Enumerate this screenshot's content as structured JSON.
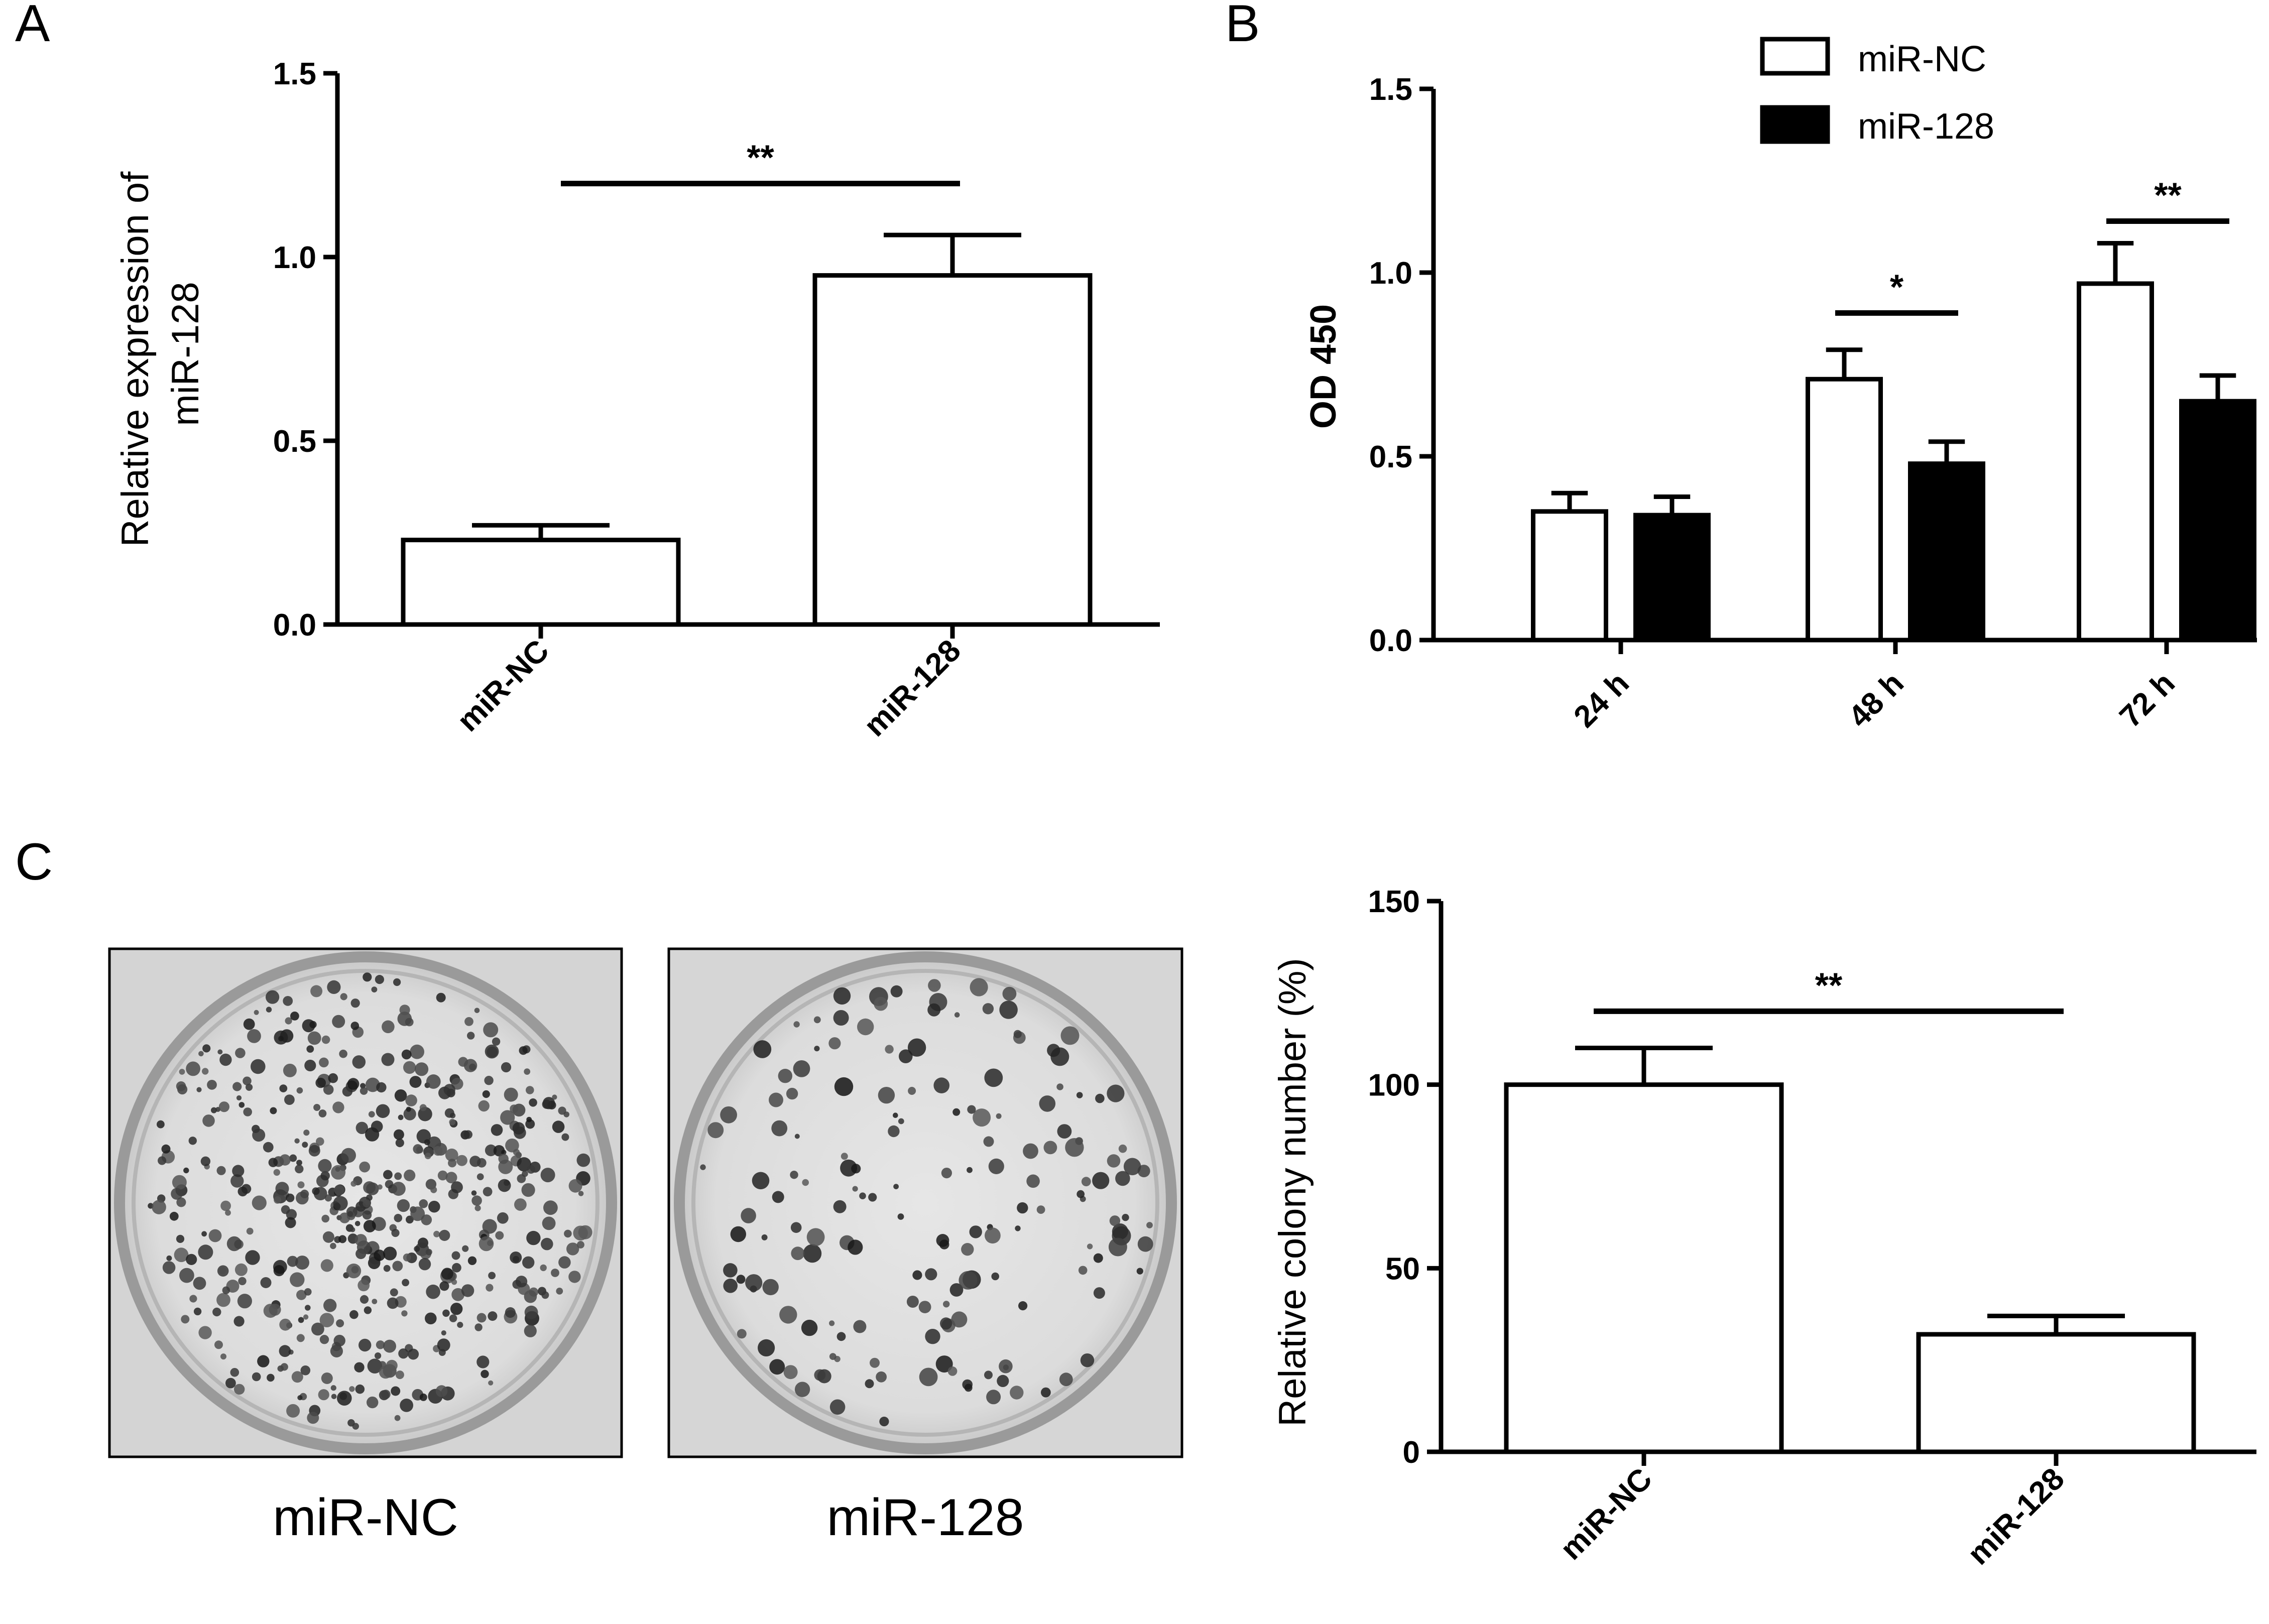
{
  "panels": {
    "a": "A",
    "b": "B",
    "c": "C"
  },
  "plate_captions": [
    "miR-NC",
    "miR-128"
  ],
  "chart_data": [
    {
      "id": "A",
      "type": "bar",
      "categories": [
        "miR-NC",
        "miR-128"
      ],
      "values": [
        0.23,
        0.95
      ],
      "errors": [
        0.04,
        0.11
      ],
      "ylabel": [
        "Relative expression of",
        "miR-128"
      ],
      "ylim": [
        0,
        1.5
      ],
      "yticks": [
        "0.0",
        "0.5",
        "1.0",
        "1.5"
      ],
      "ytick_values": [
        0,
        0.5,
        1.0,
        1.5
      ],
      "significance": [
        {
          "from": 0,
          "to": 1,
          "label": "**",
          "y": 1.2
        }
      ],
      "grid": false
    },
    {
      "id": "B",
      "type": "bar",
      "categories": [
        "24 h",
        "48 h",
        "72 h"
      ],
      "series": [
        {
          "name": "miR-NC",
          "values": [
            0.35,
            0.71,
            0.97
          ],
          "errors": [
            0.05,
            0.08,
            0.11
          ],
          "fill": "#ffffff"
        },
        {
          "name": "miR-128",
          "values": [
            0.34,
            0.48,
            0.65
          ],
          "errors": [
            0.05,
            0.06,
            0.07
          ],
          "fill": "#000000"
        }
      ],
      "ylabel": "OD 450",
      "ylim": [
        0,
        1.5
      ],
      "yticks": [
        "0.0",
        "0.5",
        "1.0",
        "1.5"
      ],
      "ytick_values": [
        0,
        0.5,
        1.0,
        1.5
      ],
      "significance": [
        {
          "category": 1,
          "label": "*",
          "y": 0.89
        },
        {
          "category": 2,
          "label": "**",
          "y": 1.14
        }
      ],
      "legend_position": "top-right",
      "grid": false
    },
    {
      "id": "C",
      "type": "bar",
      "categories": [
        "miR-NC",
        "miR-128"
      ],
      "values": [
        100,
        32
      ],
      "errors": [
        10,
        5
      ],
      "ylabel": "Relative colony number (%)",
      "ylim": [
        0,
        150
      ],
      "yticks": [
        "0",
        "50",
        "100",
        "150"
      ],
      "ytick_values": [
        0,
        50,
        100,
        150
      ],
      "significance": [
        {
          "from": 0,
          "to": 1,
          "label": "**",
          "y": 120
        }
      ],
      "grid": false
    }
  ]
}
